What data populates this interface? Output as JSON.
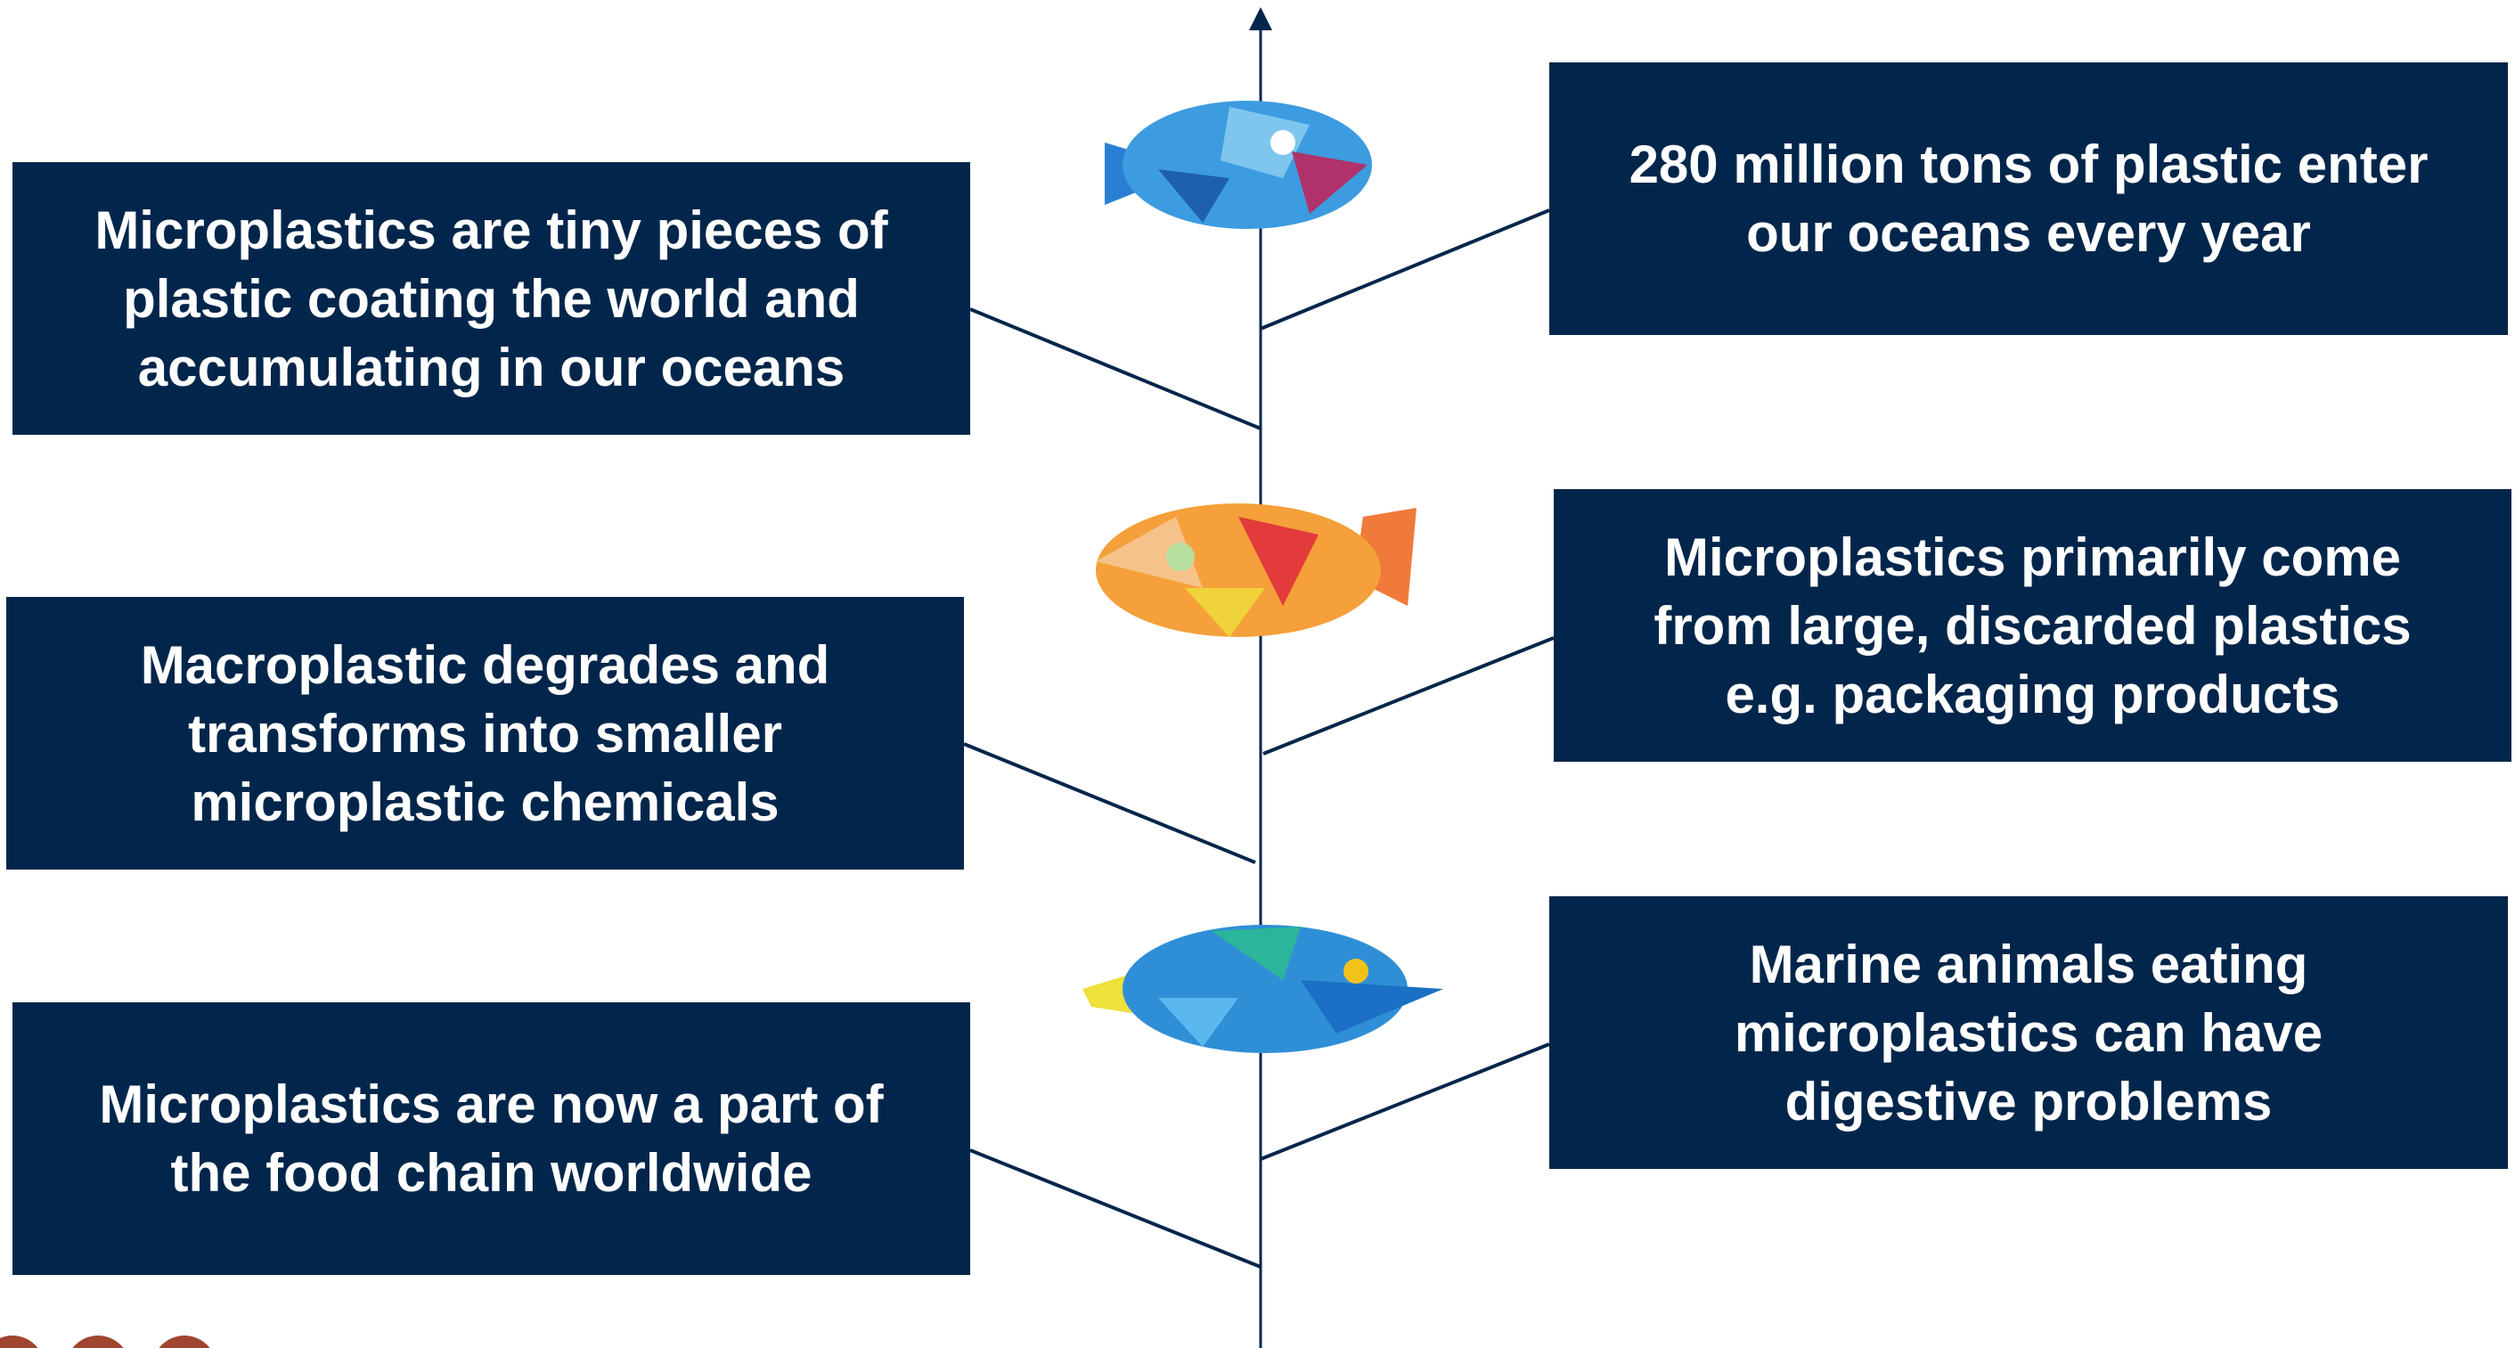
{
  "left_boxes": [
    {
      "lines": [
        "Microplastics are tiny pieces of",
        "plastic coating the world and",
        "accumulating in our oceans"
      ]
    },
    {
      "lines": [
        "Macroplastic degrades and",
        "transforms into smaller",
        "microplastic chemicals"
      ]
    },
    {
      "lines": [
        "Microplastics are now a part of",
        "the food chain worldwide"
      ]
    }
  ],
  "right_boxes": [
    {
      "lines": [
        "280 million tons of plastic enter",
        "our oceans every year"
      ]
    },
    {
      "lines": [
        "Microplastics primarily come",
        "from large, discarded plastics",
        "e.g. packaging products"
      ]
    },
    {
      "lines": [
        "Marine animals eating",
        "microplastics can have",
        "digestive problems"
      ]
    }
  ]
}
